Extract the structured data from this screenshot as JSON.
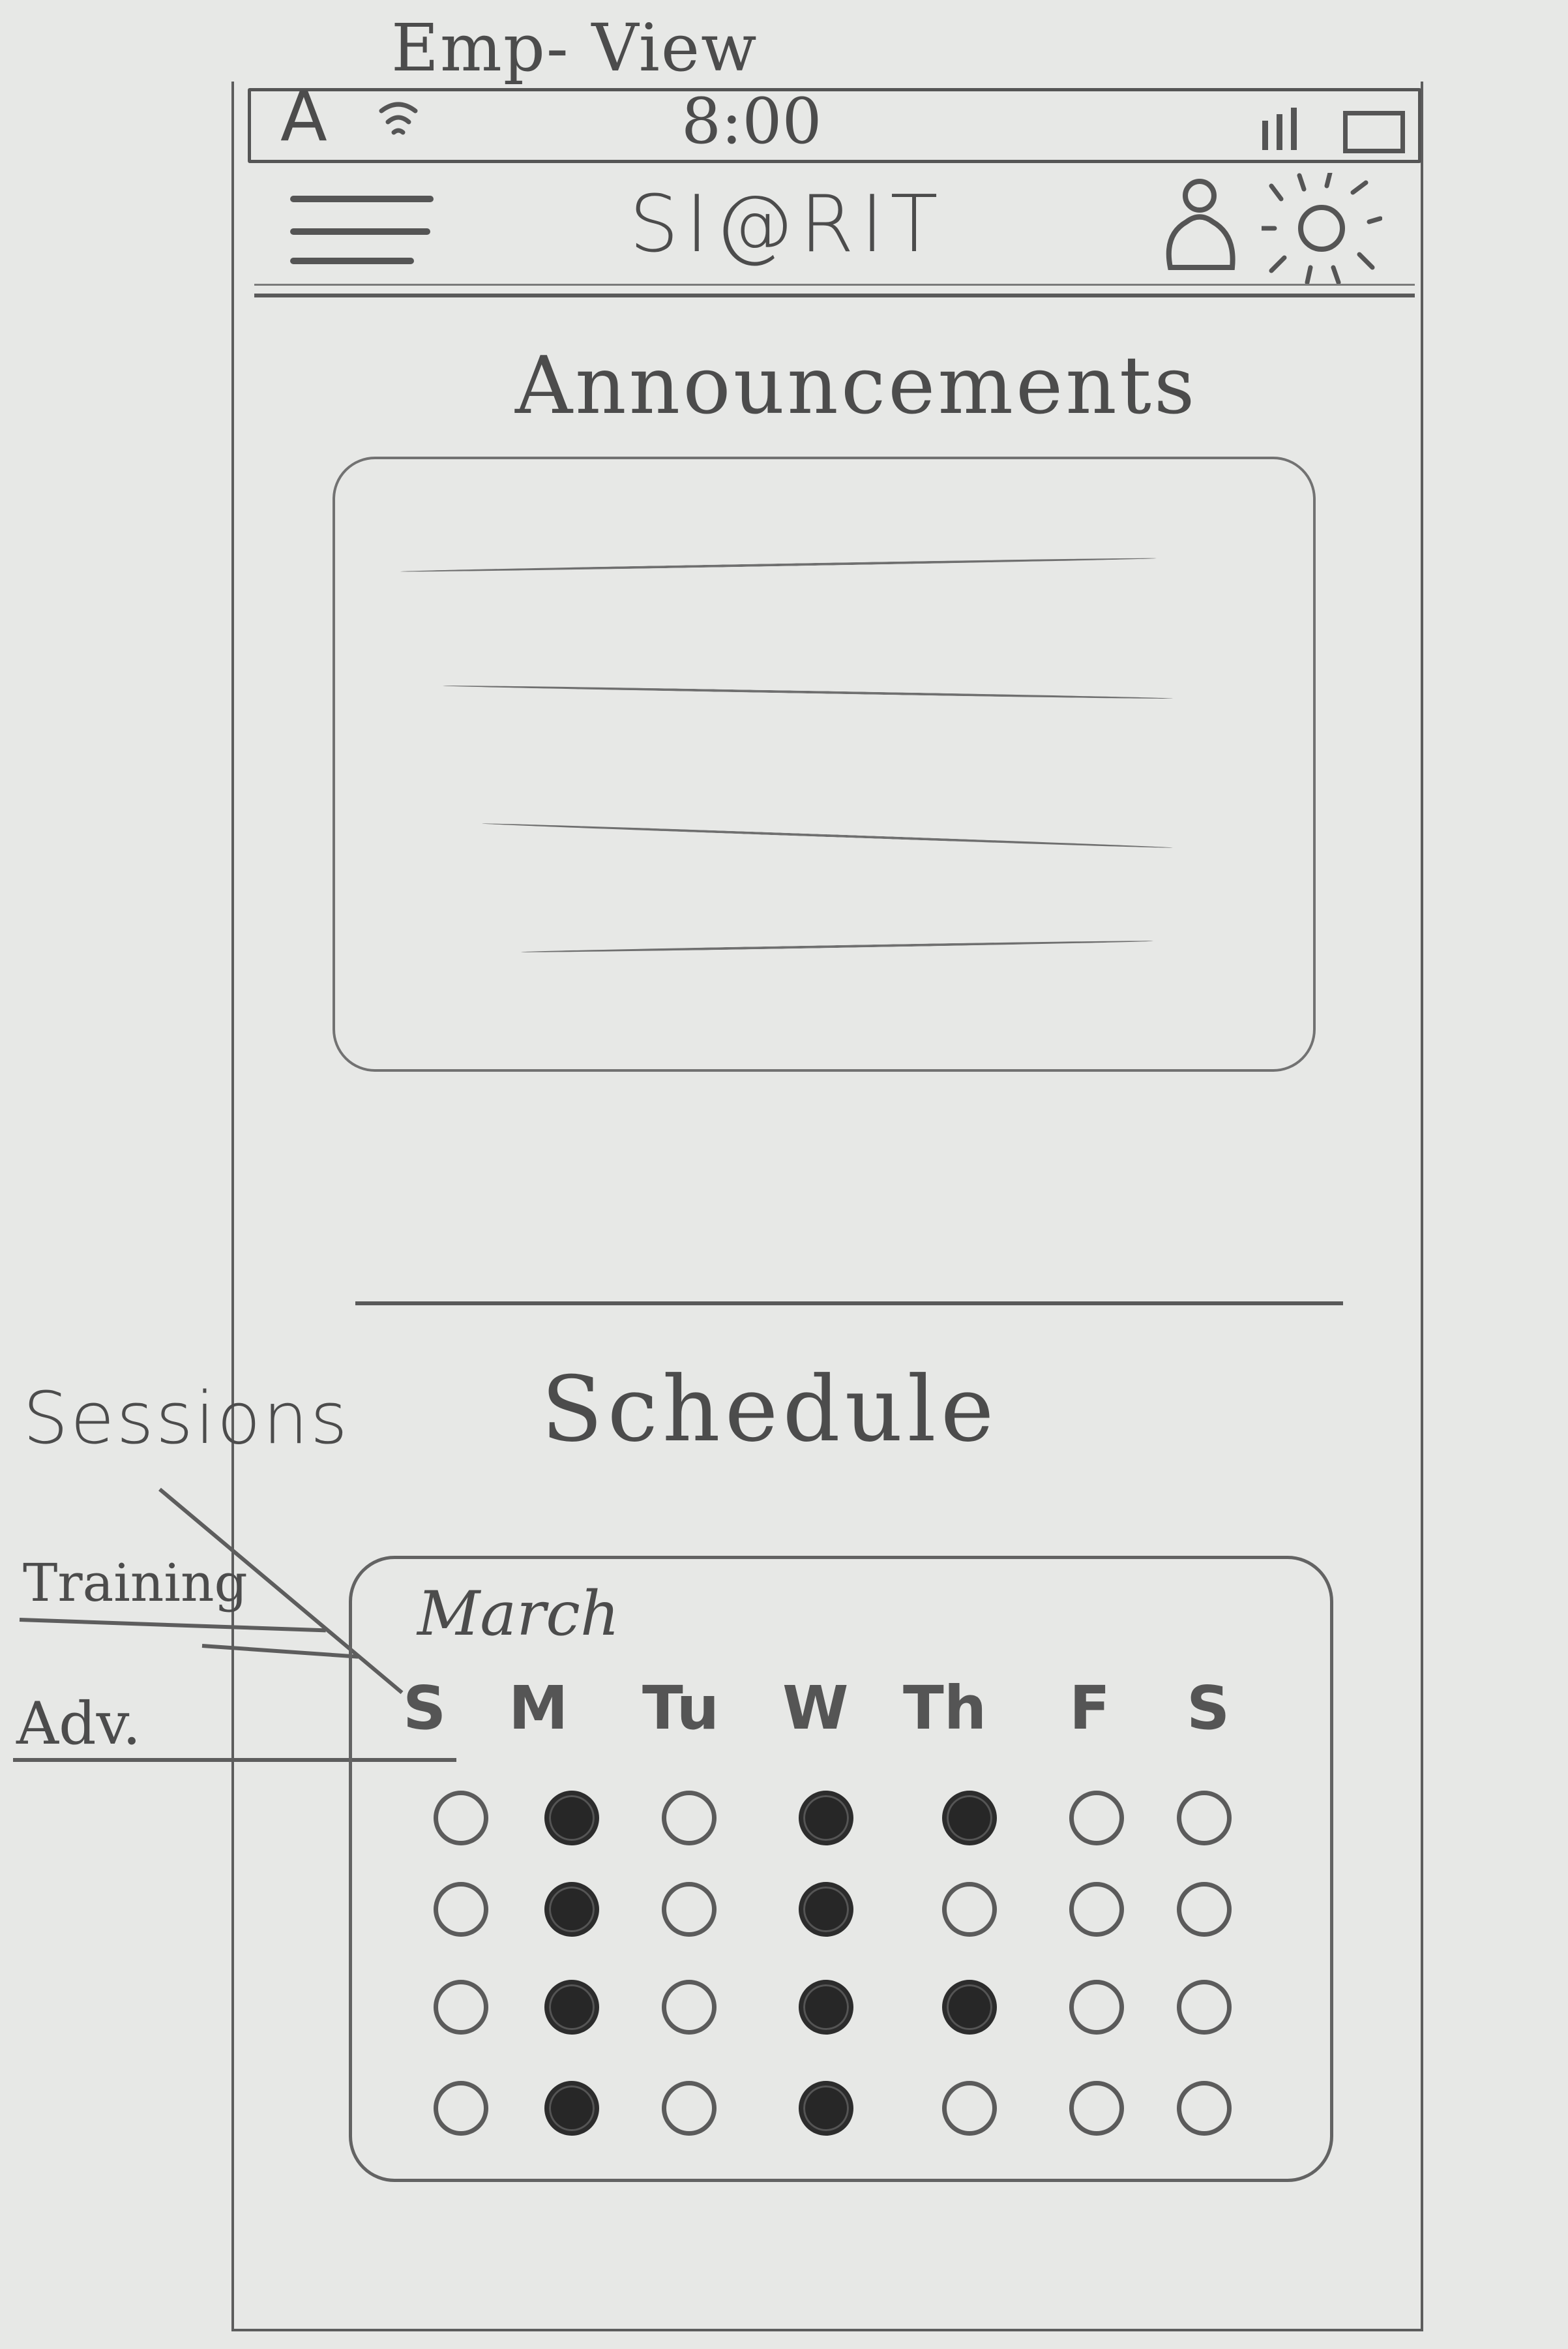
{
  "sketch": {
    "view_title": "Emp- View"
  },
  "status_bar": {
    "carrier": "A",
    "time": "8:00"
  },
  "app_header": {
    "title": "SI@RIT",
    "menu_icon": "hamburger-menu-icon",
    "user_icon": "user-profile-icon",
    "settings_icon": "settings-gear-icon"
  },
  "announcements": {
    "title": "Announcements"
  },
  "schedule": {
    "title": "Schedule",
    "month": "March",
    "weekdays": [
      "S",
      "M",
      "Tu",
      "W",
      "Th",
      "F",
      "S"
    ],
    "legend": {
      "heading": "Sessions",
      "items": [
        "Training",
        "Adv."
      ]
    },
    "weeks": [
      [
        "open",
        "filled",
        "open",
        "filled",
        "filled",
        "open",
        "open"
      ],
      [
        "open",
        "filled",
        "open",
        "filled",
        "open",
        "open",
        "open"
      ],
      [
        "open",
        "filled",
        "open",
        "filled",
        "filled",
        "open",
        "open"
      ],
      [
        "open",
        "filled",
        "open",
        "filled",
        "open",
        "open",
        "open"
      ]
    ]
  }
}
